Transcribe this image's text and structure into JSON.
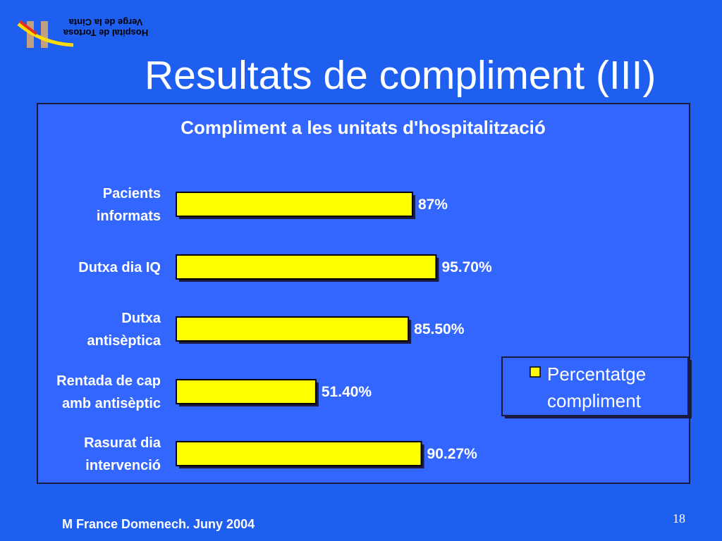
{
  "slide": {
    "title": "Resultats de compliment (III)",
    "logo_text": [
      "Hospital de Tortosa",
      "Verge de la Cinta"
    ],
    "footer": "M France Domenech. Juny 2004",
    "page_number": "18"
  },
  "chart_data": {
    "type": "bar",
    "orientation": "horizontal",
    "title": "Compliment a les unitats d'hospitalització",
    "categories": [
      [
        "Pacients",
        "informats"
      ],
      [
        "Dutxa dia IQ"
      ],
      [
        "Dutxa",
        "antisèptica"
      ],
      [
        "Rentada de cap",
        "amb antisèptic"
      ],
      [
        "Rasurat dia",
        "intervenció"
      ]
    ],
    "series": [
      {
        "name": "Percentatge compliment",
        "color": "#ffff00",
        "values": [
          87,
          95.7,
          85.5,
          51.4,
          90.27
        ],
        "value_labels": [
          "87%",
          "95.70%",
          "85.50%",
          "51.40%",
          "90.27%"
        ]
      }
    ],
    "legend": "right"
  }
}
